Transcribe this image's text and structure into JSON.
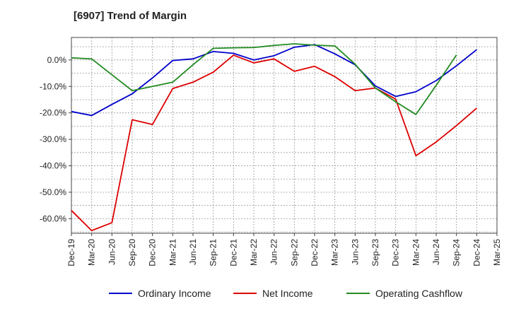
{
  "chart_data": {
    "type": "line",
    "title": "[6907]  Trend of Margin",
    "xlabel": "",
    "ylabel": "",
    "categories": [
      "Dec-19",
      "Mar-20",
      "Jun-20",
      "Sep-20",
      "Dec-20",
      "Mar-21",
      "Jun-21",
      "Sep-21",
      "Dec-21",
      "Mar-22",
      "Jun-22",
      "Sep-22",
      "Dec-22",
      "Mar-23",
      "Jun-23",
      "Sep-23",
      "Dec-23",
      "Mar-24",
      "Jun-24",
      "Sep-24",
      "Dec-24",
      "Mar-25"
    ],
    "y_ticks": [
      {
        "value": 0,
        "label": "0.0%"
      },
      {
        "value": -10,
        "label": "-10.0%"
      },
      {
        "value": -20,
        "label": "-20.0%"
      },
      {
        "value": -30,
        "label": "-30.0%"
      },
      {
        "value": -40,
        "label": "-40.0%"
      },
      {
        "value": -50,
        "label": "-50.0%"
      },
      {
        "value": -60,
        "label": "-60.0%"
      }
    ],
    "ylim": [
      -65.5,
      8.5
    ],
    "grid": true,
    "legend_position": "bottom",
    "series": [
      {
        "name": "Ordinary Income",
        "color": "#0000cc",
        "values": [
          -19.5,
          -21.0,
          -16.8,
          -12.8,
          -6.8,
          -0.2,
          0.4,
          3.2,
          2.5,
          0.0,
          1.6,
          4.8,
          5.8,
          2.3,
          -1.8,
          -9.8,
          -13.8,
          -12.0,
          -7.8,
          -2.2,
          3.9,
          null
        ]
      },
      {
        "name": "Net Income",
        "color": "#dd0000",
        "values": [
          -56.9,
          -64.5,
          -61.5,
          -22.6,
          -24.4,
          -10.8,
          -8.4,
          -4.6,
          1.8,
          -1.1,
          0.4,
          -4.3,
          -2.4,
          -6.3,
          -11.6,
          -10.6,
          -14.8,
          -36.2,
          -31.0,
          -24.8,
          -18.2,
          null
        ]
      },
      {
        "name": "Operating Cashflow",
        "color": "#228b22",
        "values": [
          0.8,
          0.4,
          -5.6,
          -11.6,
          -10.0,
          -8.4,
          -1.8,
          4.4,
          4.6,
          4.7,
          5.5,
          6.1,
          5.6,
          5.3,
          -1.6,
          -10.6,
          -15.8,
          -20.6,
          -9.6,
          1.9,
          null,
          null
        ]
      }
    ]
  }
}
